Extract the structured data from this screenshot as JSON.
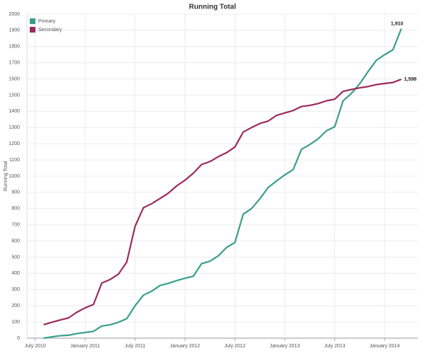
{
  "chart_data": {
    "type": "line",
    "title": "Running Total",
    "y_label": "Running Total",
    "x": [
      "2010-08",
      "2010-09",
      "2010-10",
      "2010-11",
      "2010-12",
      "2011-01",
      "2011-02",
      "2011-03",
      "2011-04",
      "2011-05",
      "2011-06",
      "2011-07",
      "2011-08",
      "2011-09",
      "2011-10",
      "2011-11",
      "2011-12",
      "2012-01",
      "2012-02",
      "2012-03",
      "2012-04",
      "2012-05",
      "2012-06",
      "2012-07",
      "2012-08",
      "2012-09",
      "2012-10",
      "2012-11",
      "2012-12",
      "2013-01",
      "2013-02",
      "2013-03",
      "2013-04",
      "2013-05",
      "2013-06",
      "2013-07",
      "2013-08",
      "2013-09",
      "2013-10",
      "2013-11",
      "2013-12",
      "2014-01",
      "2014-02",
      "2014-03"
    ],
    "series": [
      {
        "name": "Primary",
        "color": "#3a9e8c",
        "values": [
          0,
          8,
          15,
          18,
          28,
          35,
          42,
          75,
          82,
          98,
          120,
          200,
          265,
          290,
          325,
          338,
          355,
          370,
          382,
          460,
          475,
          508,
          560,
          590,
          765,
          800,
          860,
          930,
          970,
          1008,
          1040,
          1165,
          1195,
          1230,
          1280,
          1305,
          1465,
          1510,
          1570,
          1645,
          1715,
          1750,
          1780,
          1910
        ],
        "value_labels": [
          null,
          null,
          null,
          null,
          null,
          null,
          null,
          null,
          null,
          null,
          null,
          null,
          null,
          null,
          null,
          null,
          null,
          null,
          null,
          null,
          null,
          null,
          null,
          null,
          null,
          null,
          null,
          null,
          null,
          null,
          null,
          null,
          null,
          null,
          null,
          null,
          null,
          null,
          null,
          null,
          null,
          null,
          null,
          "1,910"
        ]
      },
      {
        "name": "Secondary",
        "color": "#9c2a5e",
        "values": [
          83,
          98,
          112,
          125,
          160,
          187,
          208,
          340,
          362,
          395,
          470,
          690,
          805,
          830,
          862,
          895,
          940,
          975,
          1018,
          1072,
          1090,
          1120,
          1145,
          1180,
          1272,
          1300,
          1325,
          1340,
          1375,
          1390,
          1405,
          1430,
          1437,
          1448,
          1465,
          1475,
          1523,
          1535,
          1545,
          1553,
          1565,
          1572,
          1578,
          1598
        ],
        "value_labels": [
          null,
          null,
          null,
          null,
          null,
          null,
          null,
          null,
          null,
          null,
          null,
          null,
          null,
          null,
          null,
          null,
          null,
          null,
          null,
          null,
          null,
          null,
          null,
          null,
          null,
          null,
          null,
          null,
          null,
          null,
          null,
          null,
          null,
          null,
          null,
          null,
          null,
          null,
          null,
          null,
          null,
          null,
          null,
          "1,598"
        ]
      }
    ],
    "xlim": [
      "2010-06",
      "2014-05"
    ],
    "xticks": [
      {
        "value": "2010-07",
        "label": "July 2010"
      },
      {
        "value": "2011-01",
        "label": "January 2011"
      },
      {
        "value": "2011-07",
        "label": "July 2011"
      },
      {
        "value": "2012-01",
        "label": "January 2012"
      },
      {
        "value": "2012-07",
        "label": "July 2012"
      },
      {
        "value": "2013-01",
        "label": "January 2013"
      },
      {
        "value": "2013-07",
        "label": "July 2013"
      },
      {
        "value": "2014-01",
        "label": "January 2014"
      }
    ],
    "ylim": [
      0,
      2000
    ],
    "yticks": [
      0,
      100,
      200,
      300,
      400,
      500,
      600,
      700,
      800,
      900,
      1000,
      1100,
      1200,
      1300,
      1400,
      1500,
      1600,
      1700,
      1800,
      1900,
      2000
    ],
    "grid": true,
    "legend": "top-left"
  }
}
